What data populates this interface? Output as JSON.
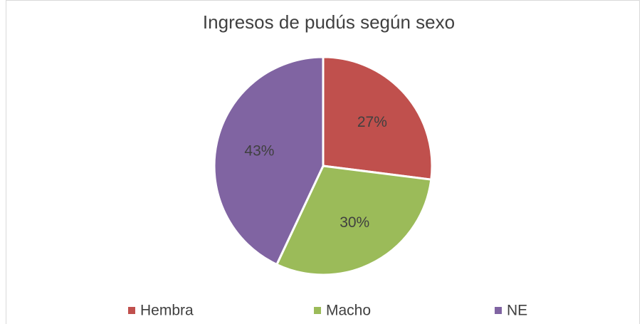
{
  "chart_data": {
    "type": "pie",
    "title": "Ingresos de pudús según sexo",
    "categories": [
      "Hembra",
      "Macho",
      "NE"
    ],
    "values": [
      27,
      30,
      43
    ],
    "value_labels": [
      "27%",
      "30%",
      "43%"
    ],
    "colors": [
      "#c0504d",
      "#9bbb59",
      "#8064a2"
    ],
    "legend": "bottom"
  }
}
